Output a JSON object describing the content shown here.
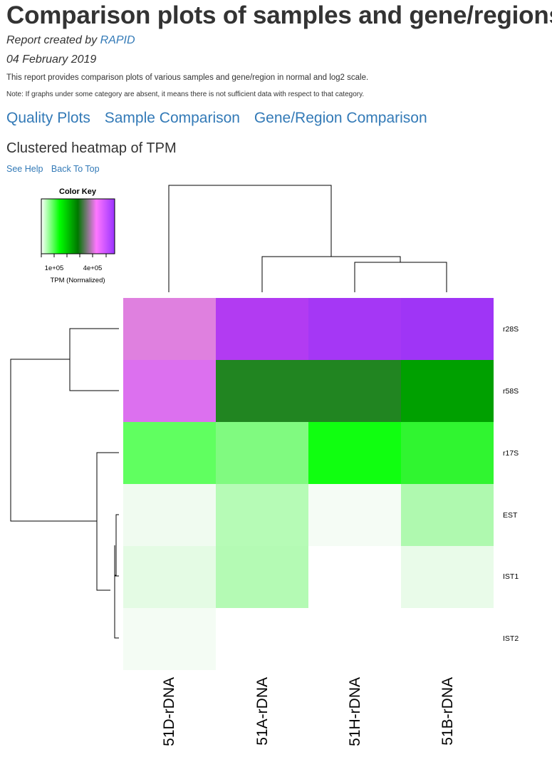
{
  "page": {
    "title": "Comparison plots of samples and gene/regions",
    "created_by_prefix": "Report created by ",
    "created_by_link": "RAPID",
    "date": "04 February 2019",
    "description": "This report provides comparison plots of various samples and gene/region in normal and log2 scale.",
    "note": "Note: If graphs under some category are absent, it means there is not sufficient data with respect to that category."
  },
  "nav": {
    "quality": "Quality Plots",
    "sample": "Sample Comparison",
    "gene": "Gene/Region Comparison"
  },
  "section": {
    "title": "Clustered heatmap of TPM",
    "see_help": "See Help",
    "back_to_top": "Back To Top"
  },
  "chart_data": {
    "type": "heatmap",
    "title": "",
    "color_key": {
      "title": "Color Key",
      "label": "TPM (Normalized)",
      "ticks": [
        "1e+05",
        "4e+05"
      ],
      "colors": [
        "#ffffff",
        "#00ff00",
        "#007700",
        "#ff77ff",
        "#9a33ff"
      ]
    },
    "columns": [
      "51D-rDNA",
      "51A-rDNA",
      "51H-rDNA",
      "51B-rDNA"
    ],
    "rows": [
      "r28S",
      "r58S",
      "r17S",
      "EST",
      "IST1",
      "IST2"
    ],
    "cell_colors": [
      [
        "#df80df",
        "#b23bf2",
        "#a537f5",
        "#9f35f6"
      ],
      [
        "#dc70ef",
        "#218521",
        "#218521",
        "#00a000"
      ],
      [
        "#60ff60",
        "#80fa80",
        "#10ff10",
        "#30f530"
      ],
      [
        "#f0fbf0",
        "#b6fbb6",
        "#f5fcf5",
        "#aff9af"
      ],
      [
        "#e4fbe4",
        "#b4fab4",
        "#ffffff",
        "#e9fbe9"
      ],
      [
        "#f4fcf4",
        "#ffffff",
        "#ffffff",
        "#ffffff"
      ]
    ]
  }
}
